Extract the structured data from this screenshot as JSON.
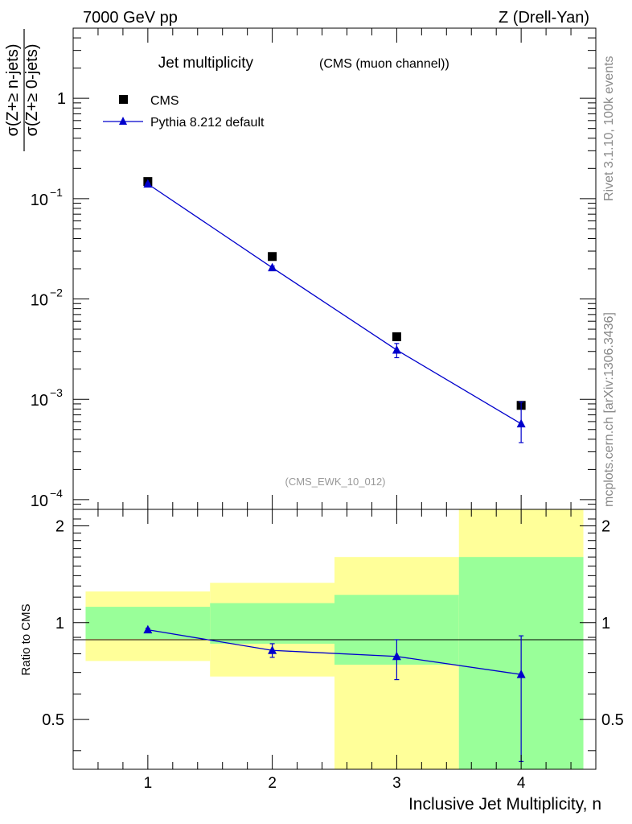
{
  "header": {
    "left": "7000 GeV pp",
    "right": "Z (Drell-Yan)"
  },
  "side_labels": {
    "top": "Rivet 3.1.10,  100k events",
    "bottom": "mcplots.cern.ch [arXiv:1306.3436]"
  },
  "chart_data": [
    {
      "type": "scatter",
      "title": "Jet multiplicity",
      "subtitle": "(CMS (muon channel))",
      "analysis_id": "(CMS_EWK_10_012)",
      "ylabel": "σ(Z+≥ n-jets) / σ(Z+≥ 0-jets)",
      "ylabel_num": "σ(Z+≥ n-jets)",
      "ylabel_den": "σ(Z+≥ 0-jets)",
      "yscale": "log",
      "ylim": [
        8e-05,
        5
      ],
      "xlim": [
        0.4,
        4.6
      ],
      "y_ticks": [
        {
          "v": 1,
          "label": "1"
        },
        {
          "v": 0.1,
          "base": "10",
          "exp": "−1"
        },
        {
          "v": 0.01,
          "base": "10",
          "exp": "−2"
        },
        {
          "v": 0.001,
          "base": "10",
          "exp": "−3"
        },
        {
          "v": 0.0001,
          "base": "10",
          "exp": "−4"
        }
      ],
      "legend_position": "top-left",
      "series": [
        {
          "name": "CMS",
          "marker": "square",
          "color": "#000000",
          "x": [
            1,
            2,
            3,
            4
          ],
          "y": [
            0.148,
            0.0265,
            0.0042,
            0.00087
          ]
        },
        {
          "name": "Pythia 8.212 default",
          "marker": "triangle",
          "color": "#0000cc",
          "x": [
            1,
            2,
            3,
            4
          ],
          "y": [
            0.14,
            0.0205,
            0.0031,
            0.00057
          ],
          "yerr_low": [
            0.003,
            0.0008,
            0.0005,
            0.0002
          ],
          "yerr_high": [
            0.003,
            0.0008,
            0.0005,
            0.00037
          ]
        }
      ]
    },
    {
      "type": "line",
      "ylabel": "Ratio to CMS",
      "xlabel": "Inclusive Jet Multiplicity, n",
      "ylim": [
        0.35,
        2.25
      ],
      "yscale": "log",
      "xlim": [
        0.4,
        4.6
      ],
      "x_ticks": [
        "1",
        "2",
        "3",
        "4"
      ],
      "y_ticks": [
        {
          "v": 0.5,
          "label": "0.5"
        },
        {
          "v": 1,
          "label": "1"
        },
        {
          "v": 2,
          "label": "2"
        }
      ],
      "uncertainty_bands": {
        "bins": [
          [
            0.5,
            1.5
          ],
          [
            1.5,
            2.5
          ],
          [
            2.5,
            3.5
          ],
          [
            3.5,
            4.5
          ]
        ],
        "outer_low": [
          0.76,
          0.68,
          0.3,
          0.3
        ],
        "outer_high": [
          1.25,
          1.33,
          1.6,
          2.32
        ],
        "inner_low": [
          0.89,
          0.86,
          0.74,
          0.3
        ],
        "inner_high": [
          1.12,
          1.15,
          1.22,
          1.6
        ],
        "outer_color": "#ffff99",
        "inner_color": "#99ff99"
      },
      "series": [
        {
          "name": "Pythia 8.212 default",
          "color": "#0000cc",
          "x": [
            1,
            2,
            3,
            4
          ],
          "y": [
            0.95,
            0.82,
            0.785,
            0.69
          ],
          "yerr_low": [
            0.01,
            0.04,
            0.12,
            0.32
          ],
          "yerr_high": [
            0.01,
            0.04,
            0.1,
            0.22
          ]
        }
      ]
    }
  ]
}
